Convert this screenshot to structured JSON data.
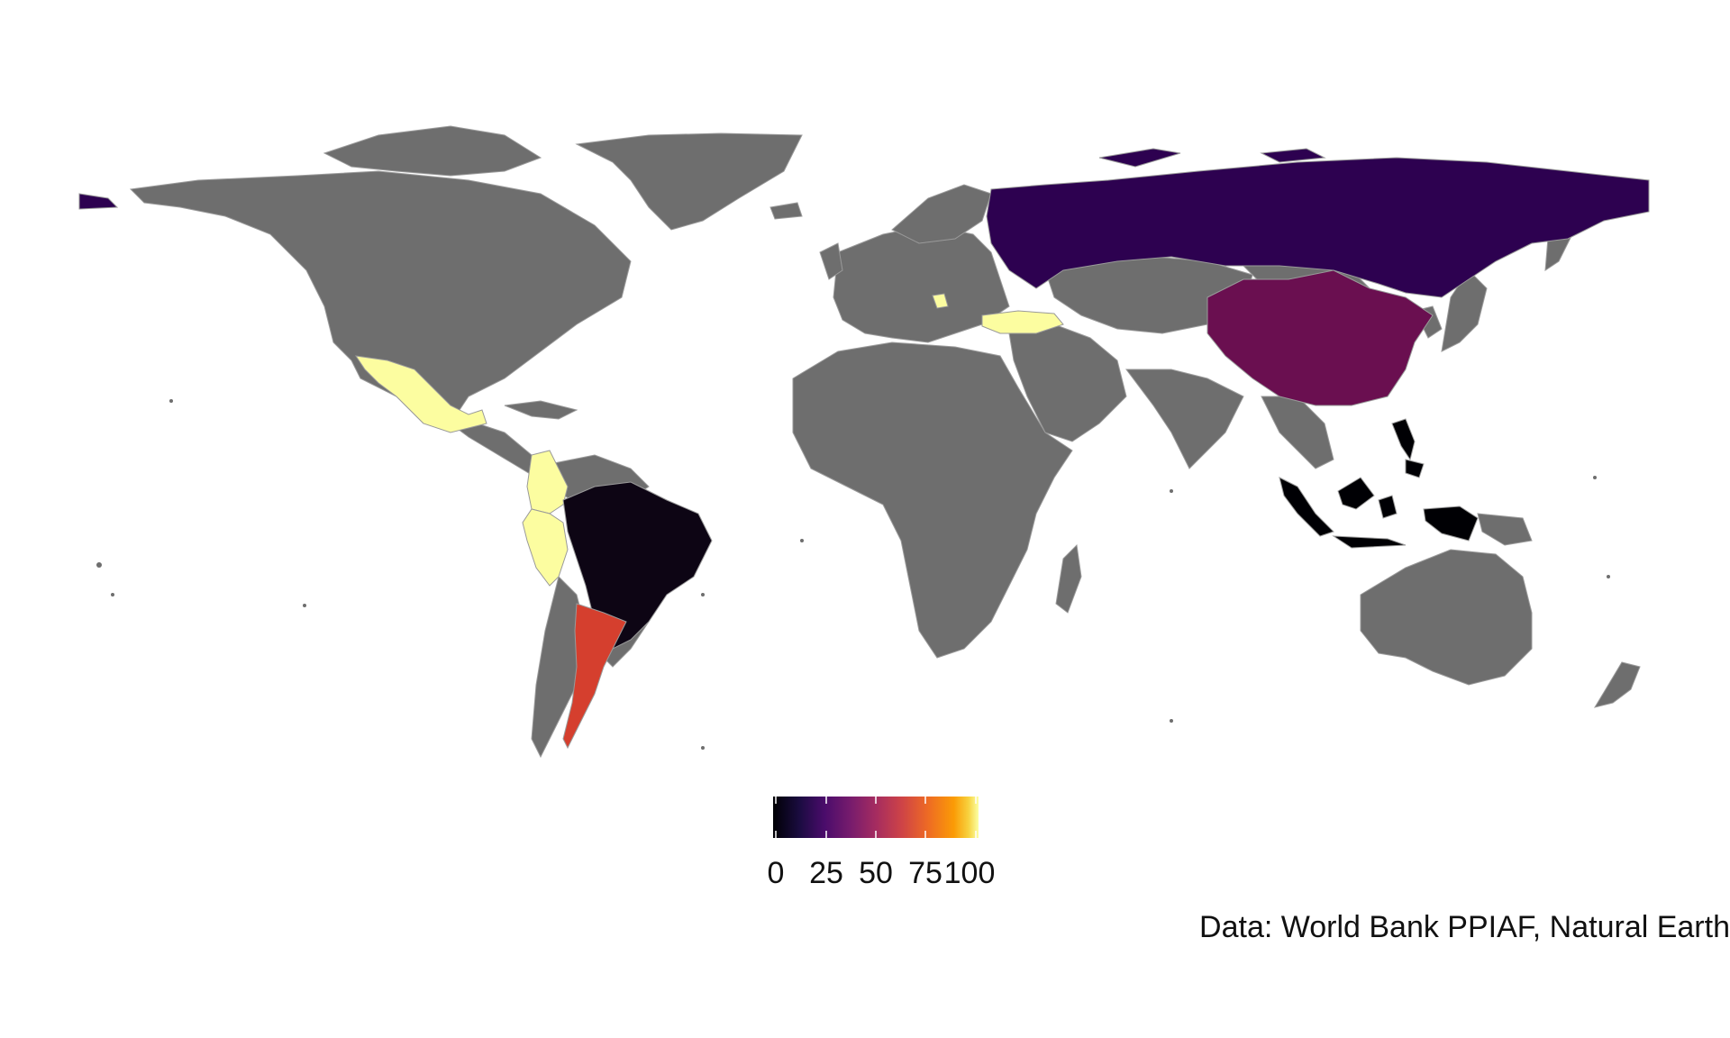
{
  "map": {
    "type": "choropleth",
    "base_color": "#6e6e6e",
    "border_color": "#9a9a9a",
    "highlighted": [
      {
        "country": "Russia",
        "value": 10,
        "color": "#2d0150"
      },
      {
        "country": "China",
        "value": 28,
        "color": "#6a0f50"
      },
      {
        "country": "Brazil",
        "value": 2,
        "color": "#0d0514"
      },
      {
        "country": "Argentina",
        "value": 68,
        "color": "#d53f2e"
      },
      {
        "country": "Mexico",
        "value": 100,
        "color": "#fcfda0"
      },
      {
        "country": "Colombia",
        "value": 100,
        "color": "#fcfda0"
      },
      {
        "country": "Peru",
        "value": 100,
        "color": "#fcfda0"
      },
      {
        "country": "Turkey",
        "value": 100,
        "color": "#fcfda0"
      },
      {
        "country": "Serbia",
        "value": 100,
        "color": "#fcfda0"
      },
      {
        "country": "Indonesia",
        "value": 0,
        "color": "#000004"
      },
      {
        "country": "Philippines",
        "value": 0,
        "color": "#000004"
      }
    ]
  },
  "legend": {
    "palette": "inferno",
    "min": 0,
    "max": 100,
    "ticks": [
      "0",
      "25",
      "50",
      "75",
      "100"
    ]
  },
  "caption": "Data: World Bank PPIAF, Natural Earth"
}
